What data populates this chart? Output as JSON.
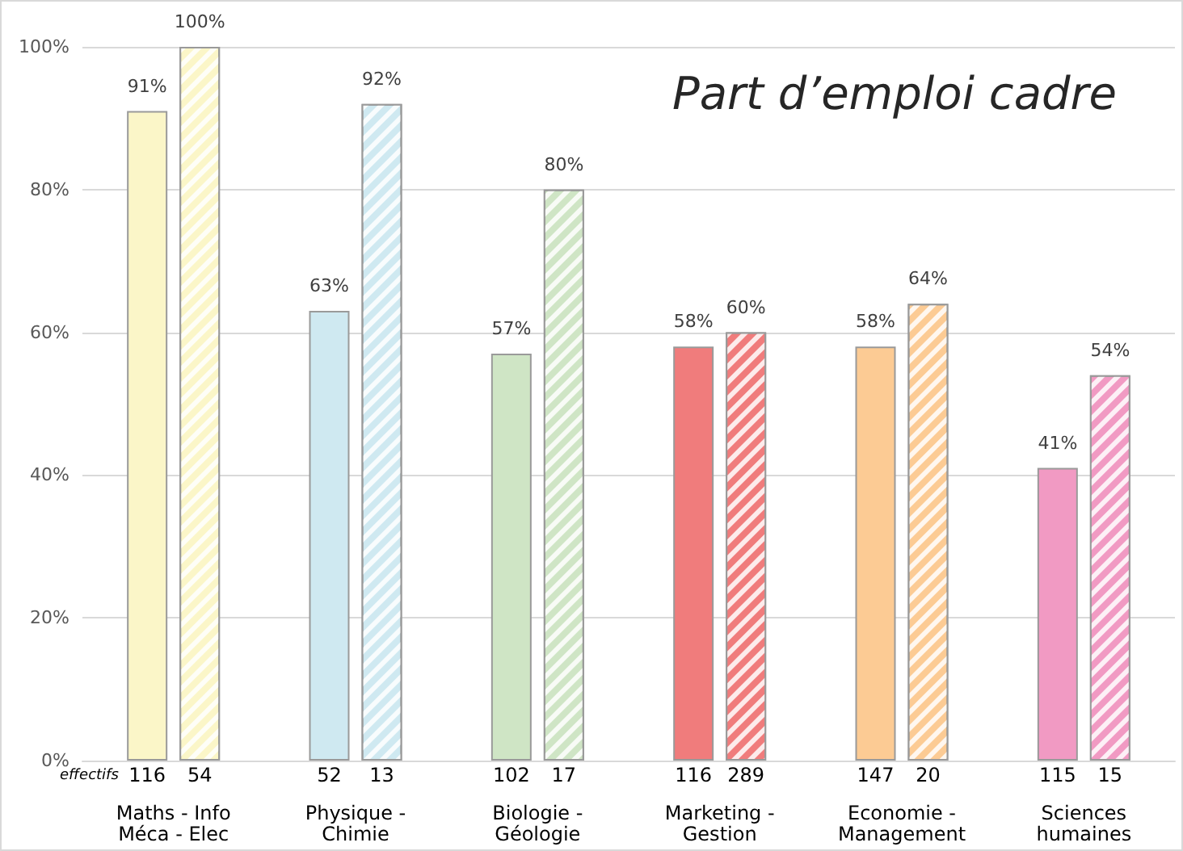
{
  "chart_data": {
    "type": "bar",
    "title": "Part d’emploi cadre",
    "categories": [
      "Maths - Info\nMéca - Elec",
      "Physique -\nChimie",
      "Biologie -\nGéologie",
      "Marketing -\nGestion",
      "Economie -\nManagement",
      "Sciences\nhumaines"
    ],
    "series": [
      {
        "colors": [
          "#fbf6c8",
          "#cfe9f1",
          "#cfe5c5",
          "#f07c7c",
          "#fccb94",
          "#f19ac3"
        ],
        "values": [
          91,
          63,
          57,
          58,
          58,
          41
        ],
        "value_labels": [
          "91%",
          "63%",
          "57%",
          "58%",
          "58%",
          "41%"
        ]
      },
      {
        "colors": [
          "#fbf6c8",
          "#cfe9f1",
          "#cfe5c5",
          "#f07c7c",
          "#fccb94",
          "#f19ac3"
        ],
        "values": [
          100,
          92,
          80,
          60,
          64,
          54
        ],
        "value_labels": [
          "100%",
          "92%",
          "80%",
          "60%",
          "64%",
          "54%"
        ]
      }
    ],
    "ylim": [
      0,
      100
    ],
    "yticks": [
      {
        "value": 0,
        "label": "0%"
      },
      {
        "value": 20,
        "label": "20%"
      },
      {
        "value": 40,
        "label": "40%"
      },
      {
        "value": 60,
        "label": "60%"
      },
      {
        "value": 80,
        "label": "80%"
      },
      {
        "value": 100,
        "label": "100%"
      }
    ],
    "grid": "y",
    "annotations": [
      "effectifs",
      "116",
      "54",
      "52",
      "13",
      "102",
      "17",
      "116",
      "289",
      "147",
      "20",
      "115",
      "15"
    ]
  }
}
